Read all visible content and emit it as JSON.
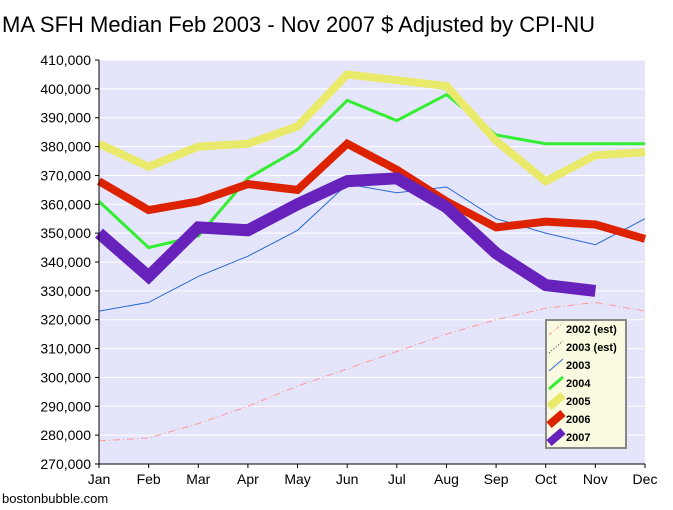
{
  "chart_data": {
    "type": "line",
    "title": "MA SFH Median Feb 2003 - Nov 2007 $ Adjusted by CPI-NU",
    "credit": "bostonbubble.com",
    "xlabel": "",
    "ylabel": "",
    "categories": [
      "Jan",
      "Feb",
      "Mar",
      "Apr",
      "May",
      "Jun",
      "Jul",
      "Aug",
      "Sep",
      "Oct",
      "Nov",
      "Dec"
    ],
    "yticks": [
      "270,000",
      "280,000",
      "290,000",
      "300,000",
      "310,000",
      "320,000",
      "330,000",
      "340,000",
      "350,000",
      "360,000",
      "370,000",
      "380,000",
      "390,000",
      "400,000",
      "410,000"
    ],
    "ylim": [
      270000,
      410000
    ],
    "grid": true,
    "legend_position": "bottom-right",
    "colors": {
      "plot_background": "#e4e4fa",
      "legend_background": "#fafae0",
      "legend_border": "#888888",
      "grid": "#ffffff"
    },
    "series": [
      {
        "name": "2002 (est)",
        "color": "#ff9a9a",
        "style": "dashdot",
        "width": 1,
        "values": [
          278000,
          279000,
          284000,
          290000,
          297000,
          303000,
          309000,
          315000,
          320000,
          324000,
          326000,
          323000
        ]
      },
      {
        "name": "2003 (est)",
        "color": "#333333",
        "style": "dotted",
        "width": 1,
        "values": [
          null,
          null,
          null,
          null,
          null,
          null,
          null,
          null,
          null,
          null,
          null,
          null
        ]
      },
      {
        "name": "2003",
        "color": "#2a6ad0",
        "style": "solid",
        "width": 1,
        "values": [
          323000,
          326000,
          335000,
          342000,
          351000,
          367000,
          364000,
          366000,
          355000,
          350000,
          346000,
          355000
        ]
      },
      {
        "name": "2004",
        "color": "#33ee33",
        "style": "solid",
        "width": 3,
        "values": [
          361000,
          345000,
          349000,
          369000,
          379000,
          396000,
          389000,
          398000,
          384000,
          381000,
          381000,
          381000
        ]
      },
      {
        "name": "2005",
        "color": "#eaea6a",
        "style": "solid",
        "width": 8,
        "values": [
          381000,
          373000,
          380000,
          381000,
          387000,
          405000,
          403000,
          401000,
          382000,
          368000,
          377000,
          378000
        ]
      },
      {
        "name": "2006",
        "color": "#dd2200",
        "style": "solid",
        "width": 8,
        "values": [
          368000,
          358000,
          361000,
          367000,
          365000,
          381000,
          372000,
          361000,
          352000,
          354000,
          353000,
          348000
        ]
      },
      {
        "name": "2007",
        "color": "#6622bb",
        "style": "solid",
        "width": 12,
        "values": [
          350000,
          335000,
          352000,
          351000,
          360000,
          368000,
          369000,
          359000,
          343000,
          332000,
          330000,
          null
        ]
      }
    ]
  }
}
